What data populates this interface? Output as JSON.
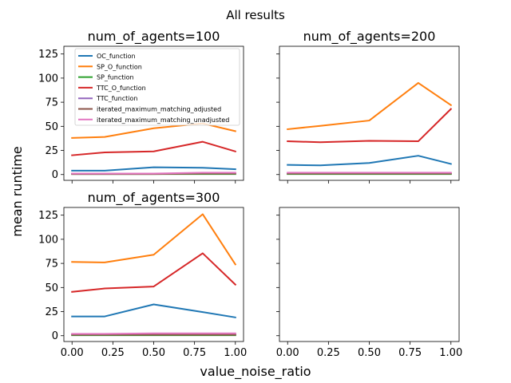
{
  "figure": {
    "suptitle": "All results",
    "xlabel": "value_noise_ratio",
    "ylabel": "mean runtime"
  },
  "colors": {
    "OC_function": "#1f77b4",
    "SP_O_function": "#ff7f0e",
    "SP_function": "#2ca02c",
    "TTC_O_function": "#d62728",
    "TTC_function": "#9467bd",
    "iterated_maximum_matching_adjusted": "#8c564b",
    "iterated_maximum_matching_unadjusted": "#e377c2"
  },
  "chart_data": [
    {
      "type": "line",
      "title": "num_of_agents=100",
      "x": [
        0.0,
        0.2,
        0.5,
        0.8,
        1.0
      ],
      "xticks": [
        "0.00",
        "0.25",
        "0.50",
        "0.75",
        "1.00"
      ],
      "yticks": [
        "0",
        "25",
        "50",
        "75",
        "100",
        "125"
      ],
      "xlim": [
        -0.05,
        1.05
      ],
      "ylim": [
        -6,
        133
      ],
      "legend": "top-left",
      "series": [
        {
          "name": "OC_function",
          "values": [
            4,
            4,
            7.5,
            7,
            5.5
          ]
        },
        {
          "name": "SP_O_function",
          "values": [
            38,
            39,
            48,
            53,
            45
          ]
        },
        {
          "name": "SP_function",
          "values": [
            0.5,
            0.5,
            0.5,
            0.5,
            0.5
          ]
        },
        {
          "name": "TTC_O_function",
          "values": [
            20,
            23,
            24,
            34,
            24
          ]
        },
        {
          "name": "TTC_function",
          "values": [
            1,
            1,
            1,
            1,
            1
          ]
        },
        {
          "name": "iterated_maximum_matching_adjusted",
          "values": [
            0.5,
            0.5,
            0.5,
            1,
            1
          ]
        },
        {
          "name": "iterated_maximum_matching_unadjusted",
          "values": [
            1,
            1,
            1,
            2,
            2
          ]
        }
      ]
    },
    {
      "type": "line",
      "title": "num_of_agents=200",
      "x": [
        0.0,
        0.2,
        0.5,
        0.8,
        1.0
      ],
      "xticks": [
        "0.00",
        "0.25",
        "0.50",
        "0.75",
        "1.00"
      ],
      "xlim": [
        -0.05,
        1.05
      ],
      "ylim": [
        -6,
        133
      ],
      "series": [
        {
          "name": "OC_function",
          "values": [
            10,
            9.5,
            12,
            19.5,
            11
          ]
        },
        {
          "name": "SP_O_function",
          "values": [
            47,
            50.5,
            56,
            95,
            72
          ]
        },
        {
          "name": "SP_function",
          "values": [
            0.5,
            0.5,
            0.5,
            0.5,
            0.5
          ]
        },
        {
          "name": "TTC_O_function",
          "values": [
            34.5,
            33.5,
            35,
            34.5,
            68
          ]
        },
        {
          "name": "TTC_function",
          "values": [
            1,
            1,
            1,
            1,
            1
          ]
        },
        {
          "name": "iterated_maximum_matching_adjusted",
          "values": [
            1,
            1,
            1,
            1,
            1
          ]
        },
        {
          "name": "iterated_maximum_matching_unadjusted",
          "values": [
            2,
            2,
            2,
            2,
            2
          ]
        }
      ]
    },
    {
      "type": "line",
      "title": "num_of_agents=300",
      "x": [
        0.0,
        0.2,
        0.5,
        0.8,
        1.0
      ],
      "xticks": [
        "0.00",
        "0.25",
        "0.50",
        "0.75",
        "1.00"
      ],
      "yticks": [
        "0",
        "25",
        "50",
        "75",
        "100",
        "125"
      ],
      "xlim": [
        -0.05,
        1.05
      ],
      "ylim": [
        -6,
        133
      ],
      "series": [
        {
          "name": "OC_function",
          "values": [
            20,
            20,
            32.5,
            24.5,
            19
          ]
        },
        {
          "name": "SP_O_function",
          "values": [
            76.5,
            76,
            84,
            126,
            74
          ]
        },
        {
          "name": "SP_function",
          "values": [
            0.5,
            0.5,
            0.5,
            0.5,
            0.5
          ]
        },
        {
          "name": "TTC_O_function",
          "values": [
            45.5,
            49,
            51,
            85.5,
            53
          ]
        },
        {
          "name": "TTC_function",
          "values": [
            1.5,
            1.5,
            1.5,
            1.5,
            1.5
          ]
        },
        {
          "name": "iterated_maximum_matching_adjusted",
          "values": [
            1,
            1,
            1,
            1,
            1
          ]
        },
        {
          "name": "iterated_maximum_matching_unadjusted",
          "values": [
            2,
            2,
            2.5,
            2.5,
            2.5
          ]
        }
      ]
    },
    {
      "type": "line",
      "title": "",
      "x": [],
      "xticks": [
        "0.00",
        "0.25",
        "0.50",
        "0.75",
        "1.00"
      ],
      "xlim": [
        -0.05,
        1.05
      ],
      "ylim": [
        -6,
        133
      ],
      "series": []
    }
  ]
}
